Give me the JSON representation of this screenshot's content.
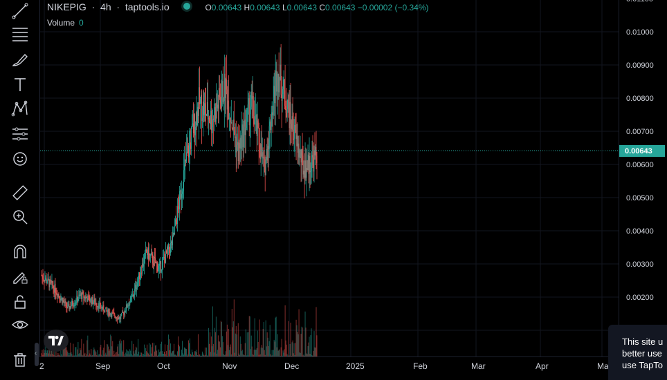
{
  "legend": {
    "symbol": "NIKEPIG",
    "interval": "4h",
    "source": "taptools.io",
    "o_label": "O",
    "o_value": "0.00643",
    "h_label": "H",
    "h_value": "0.00643",
    "l_label": "L",
    "l_value": "0.00643",
    "c_label": "C",
    "c_value": "0.00643",
    "change": "−0.00002 (−0.34%)",
    "volume_label": "Volume",
    "volume_value": "0"
  },
  "colors": {
    "up": "#26a69a",
    "down": "#ef5350",
    "background": "#000000",
    "grid": "#1e2230"
  },
  "tools": [
    "trend-line-icon",
    "fib-icon",
    "brush-icon",
    "text-icon",
    "pattern-icon",
    "forecast-icon",
    "emoji-icon",
    "ruler-icon",
    "zoom-in-icon",
    "magnet-icon",
    "lock-drawing-icon",
    "lock-icon",
    "eye-icon",
    "trash-icon"
  ],
  "price_axis": {
    "labels": [
      "0.01100",
      "0.01000",
      "0.00900",
      "0.00800",
      "0.00700",
      "0.00600",
      "0.00500",
      "0.00400",
      "0.00300",
      "0.00200"
    ],
    "current_price": "0.00643"
  },
  "time_axis": {
    "labels": [
      "2",
      "Sep",
      "Oct",
      "Nov",
      "Dec",
      "2025",
      "Feb",
      "Mar",
      "Apr",
      "Ma"
    ]
  },
  "cookie_banner": {
    "lines": [
      "This site u",
      "better use",
      "use TapTo"
    ]
  },
  "chart_data": {
    "type": "candlestick",
    "title": "NIKEPIG",
    "ylim": [
      0.0011,
      0.0111
    ],
    "series": [
      {
        "name": "price_path",
        "dates": [
          "2024-08-25",
          "2024-09-05",
          "2024-09-15",
          "2024-09-25",
          "2024-10-05",
          "2024-10-15",
          "2024-10-20",
          "2024-10-25",
          "2024-10-30",
          "2024-11-04",
          "2024-11-08",
          "2024-11-11",
          "2024-11-14",
          "2024-11-17",
          "2024-11-20",
          "2024-11-23",
          "2024-11-26",
          "2024-11-29",
          "2024-12-02",
          "2024-12-05",
          "2024-12-08",
          "2024-12-11"
        ],
        "close": [
          0.0028,
          0.0024,
          0.0018,
          0.0022,
          0.002,
          0.0017,
          0.0015,
          0.0022,
          0.0035,
          0.003,
          0.0038,
          0.0062,
          0.008,
          0.0075,
          0.0085,
          0.0065,
          0.008,
          0.006,
          0.009,
          0.0075,
          0.006,
          0.0064
        ]
      }
    ],
    "current_price": 0.00643
  }
}
